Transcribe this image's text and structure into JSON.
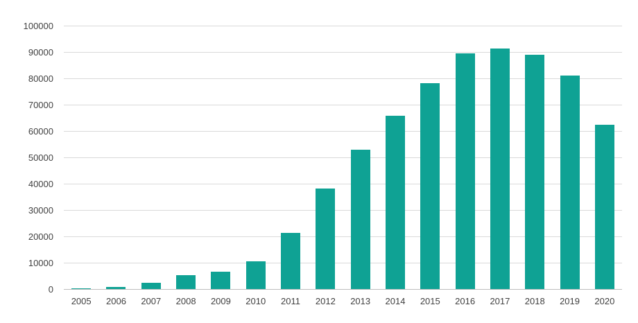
{
  "chart_data": {
    "type": "bar",
    "title": "",
    "xlabel": "",
    "ylabel": "",
    "categories": [
      "2005",
      "2006",
      "2007",
      "2008",
      "2009",
      "2010",
      "2011",
      "2012",
      "2013",
      "2014",
      "2015",
      "2016",
      "2017",
      "2018",
      "2019",
      "2020"
    ],
    "values": [
      300,
      700,
      2400,
      5300,
      6700,
      10600,
      21300,
      38200,
      52900,
      65900,
      78200,
      89500,
      91200,
      88900,
      81100,
      62300
    ],
    "ylim": [
      0,
      100000
    ],
    "ytick_interval": 10000,
    "yticks": [
      0,
      10000,
      20000,
      30000,
      40000,
      50000,
      60000,
      70000,
      80000,
      90000,
      100000
    ],
    "ytick_labels": [
      "0",
      "10000",
      "20000",
      "30000",
      "40000",
      "50000",
      "60000",
      "70000",
      "80000",
      "90000",
      "100000"
    ],
    "grid": true,
    "legend": "none",
    "bar_color": "#0FA294",
    "gridline_color": "#D9D9D9",
    "axis_line_color": "#BDBDBD",
    "tick_label_color": "#404040"
  }
}
